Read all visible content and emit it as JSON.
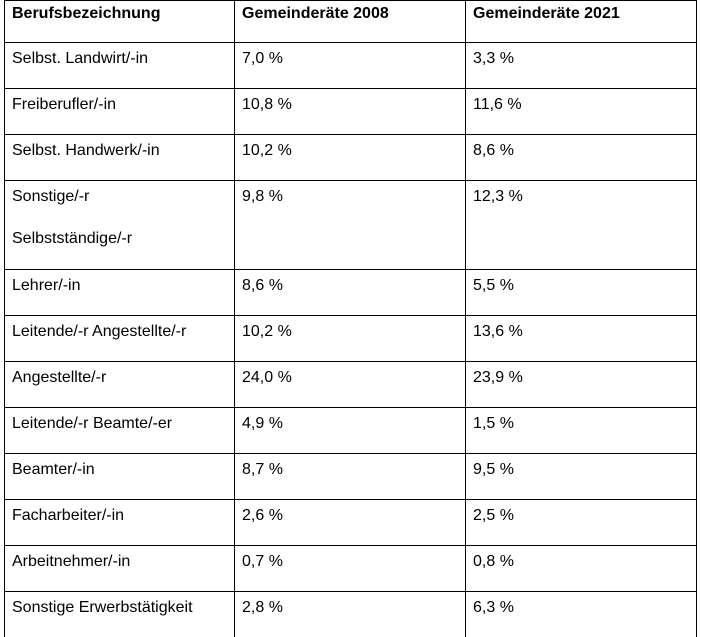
{
  "table": {
    "headers": [
      "Berufsbezeichnung",
      "Gemeinderäte 2008",
      "Gemeinderäte 2021"
    ],
    "rows": [
      {
        "occupation": "Selbst. Landwirt/-in",
        "y2008": "7,0 %",
        "y2021": "3,3 %"
      },
      {
        "occupation": "Freiberufler/-in",
        "y2008": "10,8 %",
        "y2021": "11,6 %"
      },
      {
        "occupation": "Selbst. Handwerk/-in",
        "y2008": "10,2 %",
        "y2021": "8,6 %"
      },
      {
        "occupation_line1": "Sonstige/-r",
        "occupation_line2": "Selbstständige/-r",
        "y2008": "9,8 %",
        "y2021": "12,3 %"
      },
      {
        "occupation": "Lehrer/-in",
        "y2008": "8,6 %",
        "y2021": "5,5 %"
      },
      {
        "occupation": "Leitende/-r Angestellte/-r",
        "y2008": "10,2 %",
        "y2021": "13,6 %"
      },
      {
        "occupation": "Angestellte/-r",
        "y2008": "24,0 %",
        "y2021": "23,9 %"
      },
      {
        "occupation": "Leitende/-r Beamte/-er",
        "y2008": "4,9 %",
        "y2021": "1,5 %"
      },
      {
        "occupation": "Beamter/-in",
        "y2008": "8,7 %",
        "y2021": "9,5 %"
      },
      {
        "occupation": "Facharbeiter/-in",
        "y2008": "2,6 %",
        "y2021": "2,5 %"
      },
      {
        "occupation": "Arbeitnehmer/-in",
        "y2008": "0,7 %",
        "y2021": "0,8 %"
      },
      {
        "occupation": "Sonstige Erwerbstätigkeit",
        "y2008": "2,8 %",
        "y2021": "6,3 %"
      }
    ]
  }
}
